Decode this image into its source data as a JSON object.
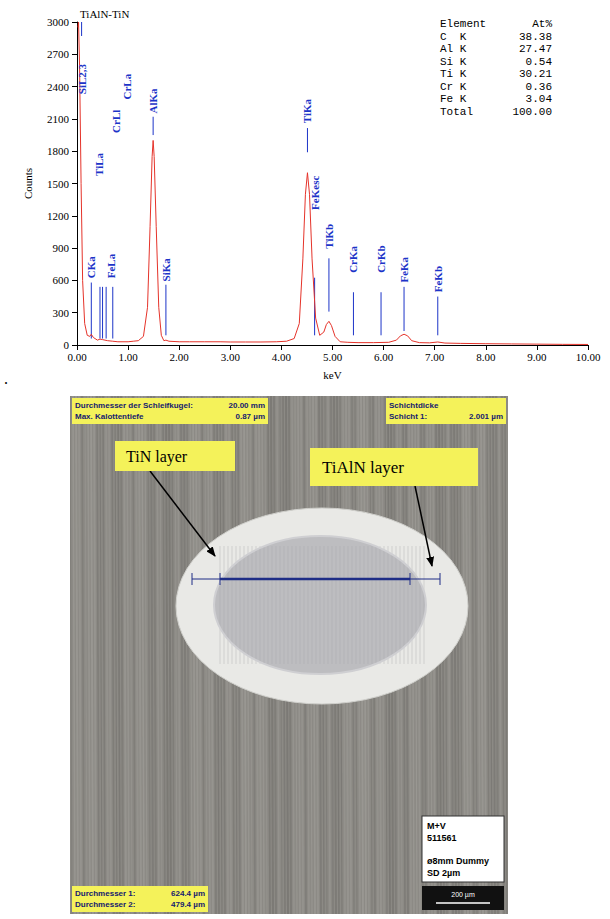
{
  "chart_data": {
    "type": "line",
    "title": "TiAlN-TiN",
    "x_label": "keV",
    "y_label": "Counts",
    "color": "#e5332a",
    "x": [
      0.02,
      0.03,
      0.05,
      0.08,
      0.11,
      0.15,
      0.2,
      0.25,
      0.28,
      0.32,
      0.4,
      0.45,
      0.5,
      0.6,
      0.7,
      0.8,
      0.9,
      1.0,
      1.1,
      1.2,
      1.3,
      1.38,
      1.43,
      1.47,
      1.49,
      1.51,
      1.55,
      1.6,
      1.65,
      1.7,
      1.74,
      1.8,
      2.0,
      2.2,
      2.5,
      2.8,
      3.0,
      3.3,
      3.6,
      3.9,
      4.1,
      4.25,
      4.35,
      4.42,
      4.47,
      4.51,
      4.55,
      4.6,
      4.67,
      4.75,
      4.83,
      4.88,
      4.93,
      4.98,
      5.05,
      5.15,
      5.3,
      5.5,
      5.8,
      6.1,
      6.25,
      6.33,
      6.4,
      6.47,
      6.55,
      6.7,
      6.9,
      7.06,
      7.2,
      7.5,
      8.0,
      8.5,
      9.0,
      9.5,
      10.0
    ],
    "values": [
      2950,
      3000,
      2600,
      1500,
      600,
      200,
      90,
      80,
      100,
      70,
      45,
      55,
      50,
      40,
      35,
      30,
      30,
      30,
      35,
      40,
      80,
      350,
      1100,
      1750,
      1900,
      1750,
      1100,
      350,
      90,
      40,
      45,
      35,
      30,
      30,
      30,
      30,
      28,
      28,
      28,
      30,
      35,
      60,
      200,
      800,
      1400,
      1600,
      1400,
      800,
      250,
      90,
      120,
      190,
      220,
      180,
      80,
      30,
      25,
      22,
      22,
      25,
      45,
      85,
      100,
      85,
      40,
      22,
      20,
      28,
      18,
      15,
      12,
      10,
      8,
      6,
      5
    ],
    "xlim": [
      0,
      10
    ],
    "xticks": [
      {
        "value": 0,
        "label": "0.00"
      },
      {
        "value": 1,
        "label": "1.00"
      },
      {
        "value": 2,
        "label": "2.00"
      },
      {
        "value": 3,
        "label": "3.00"
      },
      {
        "value": 4,
        "label": "4.00"
      },
      {
        "value": 5,
        "label": "5.00"
      },
      {
        "value": 6,
        "label": "6.00"
      },
      {
        "value": 7,
        "label": "7.00"
      },
      {
        "value": 8,
        "label": "8.00"
      },
      {
        "value": 9,
        "label": "9.00"
      },
      {
        "value": 10,
        "label": "10.00"
      }
    ],
    "ylim": [
      0,
      3000
    ],
    "yticks": [
      0,
      300,
      600,
      900,
      1200,
      1500,
      1800,
      2100,
      2400,
      2700,
      3000
    ],
    "grid": false,
    "annotations": [
      {
        "label": "SiL2,3",
        "x": 0.09,
        "line": [
          2870,
          3000
        ],
        "text_x": 0.09,
        "text_y": 2330
      },
      {
        "label": "CKa",
        "x": 0.28,
        "line": [
          60,
          580
        ],
        "text_x": 0.28,
        "text_y": 620
      },
      {
        "label": "TiLa",
        "x": 0.45,
        "line": [
          60,
          540
        ],
        "text_x": 0.44,
        "text_y": 1570
      },
      {
        "label": "CrLl",
        "x": 0.5,
        "line": [
          60,
          540
        ],
        "text_x": 0.77,
        "text_y": 1970
      },
      {
        "label": "CrLa",
        "x": 0.57,
        "line": [
          60,
          540
        ],
        "text_x": 0.98,
        "text_y": 2280
      },
      {
        "label": "FeLa",
        "x": 0.7,
        "line": [
          60,
          540
        ],
        "text_x": 0.66,
        "text_y": 620
      },
      {
        "label": "AlKa",
        "x": 1.49,
        "line": [
          1950,
          2120
        ],
        "text_x": 1.49,
        "text_y": 2150
      },
      {
        "label": "SiKa",
        "x": 1.74,
        "line": [
          90,
          560
        ],
        "text_x": 1.74,
        "text_y": 590
      },
      {
        "label": "TiKa",
        "x": 4.51,
        "line": [
          1790,
          2015
        ],
        "text_x": 4.51,
        "text_y": 2060
      },
      {
        "label": "FeKesc",
        "x": 4.65,
        "line": [
          90,
          625
        ],
        "text_x": 4.66,
        "text_y": 1255
      },
      {
        "label": "TiKb",
        "x": 4.93,
        "line": [
          310,
          805
        ],
        "text_x": 4.93,
        "text_y": 895
      },
      {
        "label": "CrKa",
        "x": 5.41,
        "line": [
          90,
          490
        ],
        "text_x": 5.41,
        "text_y": 670
      },
      {
        "label": "CrKb",
        "x": 5.95,
        "line": [
          90,
          490
        ],
        "text_x": 5.95,
        "text_y": 670
      },
      {
        "label": "FeKa",
        "x": 6.4,
        "line": [
          130,
          540
        ],
        "text_x": 6.4,
        "text_y": 580
      },
      {
        "label": "FeKb",
        "x": 7.06,
        "line": [
          90,
          450
        ],
        "text_x": 7.06,
        "text_y": 490
      }
    ],
    "table": {
      "header": [
        "Element",
        "At%"
      ],
      "rows": [
        [
          "C  K",
          "38.38"
        ],
        [
          "Al K",
          "27.47"
        ],
        [
          "Si K",
          "0.54"
        ],
        [
          "Ti K",
          "30.21"
        ],
        [
          "Cr K",
          "0.36"
        ],
        [
          "Fe K",
          "3.04"
        ],
        [
          "Total",
          "100.00"
        ]
      ]
    }
  },
  "separator": ".",
  "micrograph": {
    "info_top_left": [
      [
        "Durchmesser der Schleifkugel:",
        "20.00 mm"
      ],
      [
        "Max. Kalottentiefe",
        "0.87 µm"
      ]
    ],
    "info_top_right": {
      "title": "Schichtdicke",
      "rows": [
        [
          "Schicht 1:",
          "2.001 µm"
        ]
      ]
    },
    "info_bottom_left": [
      [
        "Durchmesser 1:",
        "624.4 µm"
      ],
      [
        "Durchmesser 2:",
        "479.4 µm"
      ]
    ],
    "sample_label": [
      "M+V",
      "511561",
      "ø8mm Dummy",
      "SD 2µm"
    ],
    "scale_bar": "200 µm",
    "callouts": [
      {
        "label": "TiN layer"
      },
      {
        "label": "TiAlN layer"
      }
    ]
  }
}
